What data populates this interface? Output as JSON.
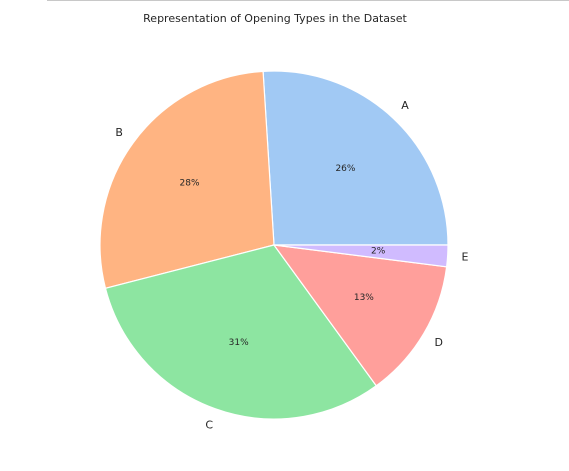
{
  "chart_data": {
    "type": "pie",
    "title": "Representation of Opening Types in the Dataset",
    "categories": [
      "A",
      "B",
      "C",
      "D",
      "E"
    ],
    "values": [
      26,
      28,
      31,
      13,
      2
    ],
    "value_labels": [
      "26%",
      "28%",
      "31%",
      "13%",
      "2%"
    ],
    "colors": [
      "#a1c9f4",
      "#ffb482",
      "#8de5a1",
      "#ff9f9b",
      "#d0bbff"
    ],
    "start_angle_deg": 0,
    "direction": "counterclockwise"
  }
}
